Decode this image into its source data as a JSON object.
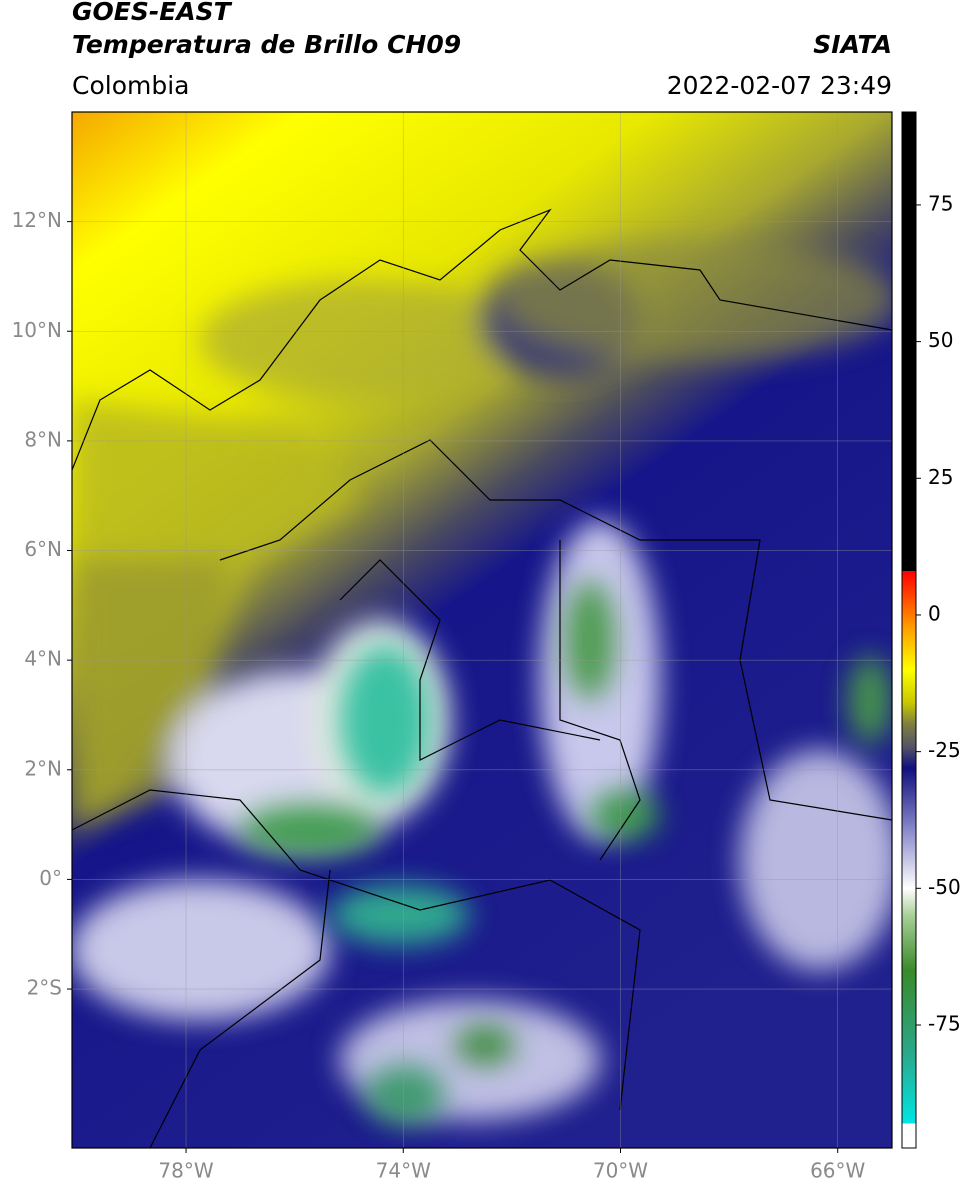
{
  "header": {
    "title_1": "GOES-EAST",
    "title_2": "Temperatura de Brillo CH09",
    "source": "SIATA",
    "region": "Colombia",
    "datetime": "2022-02-07 23:49"
  },
  "map": {
    "lonlim": [
      -80.1,
      -65
    ],
    "latlim": [
      -4.9,
      14
    ],
    "lon_ticks": [
      {
        "value": -78,
        "label": "78°W"
      },
      {
        "value": -74,
        "label": "74°W"
      },
      {
        "value": -70,
        "label": "70°W"
      },
      {
        "value": -66,
        "label": "66°W"
      }
    ],
    "lat_ticks": [
      {
        "value": 12,
        "label": "12°N"
      },
      {
        "value": 10,
        "label": "10°N"
      },
      {
        "value": 8,
        "label": "8°N"
      },
      {
        "value": 6,
        "label": "6°N"
      },
      {
        "value": 4,
        "label": "4°N"
      },
      {
        "value": 2,
        "label": "2°N"
      },
      {
        "value": 0,
        "label": "0°"
      },
      {
        "value": -2,
        "label": "2°S"
      }
    ],
    "grid": true
  },
  "colorbar": {
    "lim": [
      -97.5,
      92
    ],
    "ticks": [
      75,
      50,
      25,
      0,
      -25,
      -50,
      -75
    ],
    "colorscale": [
      [
        -97.5,
        "#ffffff"
      ],
      [
        -93,
        "#ffffff"
      ],
      [
        -93,
        "#00e5e5"
      ],
      [
        -80,
        "#2aa88a"
      ],
      [
        -65,
        "#3a8a2a"
      ],
      [
        -55,
        "#a8d098"
      ],
      [
        -50,
        "#ffffff"
      ],
      [
        -40,
        "#9090d0"
      ],
      [
        -28,
        "#10107e"
      ],
      [
        -24,
        "#555566"
      ],
      [
        -20,
        "#7e7e40"
      ],
      [
        -16,
        "#c8c800"
      ],
      [
        -10,
        "#ffff00"
      ],
      [
        -2,
        "#ff9900"
      ],
      [
        8,
        "#ff0000"
      ],
      [
        8,
        "#000000"
      ],
      [
        92,
        "#000000"
      ]
    ]
  }
}
